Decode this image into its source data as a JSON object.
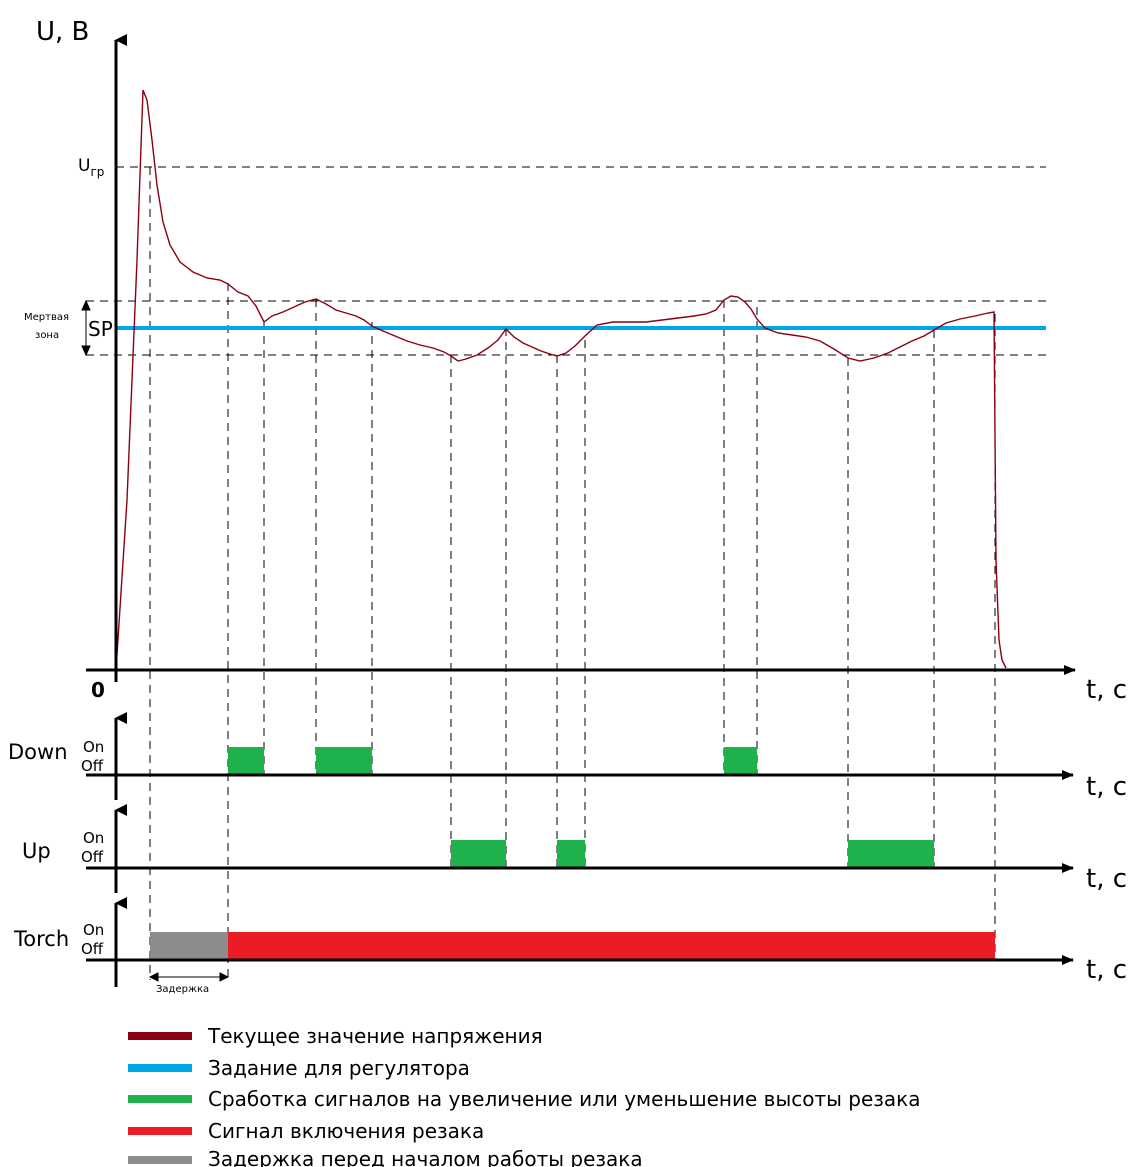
{
  "chart_data": {
    "type": "timing-diagram",
    "voltage_axis": {
      "ylabel": "U, В",
      "xlabel": "t, с",
      "origin_label": "0",
      "u_gr_main": "U",
      "u_gr_sub": "гр",
      "setpoint_label": "SP",
      "deadzone_label_line1": "Мертвая",
      "deadzone_label_line2": "зона"
    },
    "signals": [
      {
        "name": "Down",
        "on_label": "On",
        "off_label": "Off",
        "xlabel": "t, с"
      },
      {
        "name": "Up",
        "on_label": "On",
        "off_label": "Off",
        "xlabel": "t, с"
      },
      {
        "name": "Torch",
        "on_label": "On",
        "off_label": "Off",
        "xlabel": "t, с"
      }
    ],
    "delay_label": "Задержка",
    "legend": [
      {
        "text": "Текущее значение напряжения",
        "color": "#8b0012"
      },
      {
        "text": "Задание для регулятора",
        "color": "#00a6e6"
      },
      {
        "text": "Сработка сигналов на увеличение или уменьшение высоты резака",
        "color": "#1fb14c"
      },
      {
        "text": "Сигнал включения резака",
        "color": "#ec1c24"
      },
      {
        "text": "Задержка перед началом работы резака",
        "color": "#8c8c8c"
      }
    ],
    "colors": {
      "voltage": "#8b0012",
      "setpoint": "#00a6e6",
      "updown": "#1fb14c",
      "torch": "#ec1c24",
      "delay": "#8c8c8c"
    }
  }
}
